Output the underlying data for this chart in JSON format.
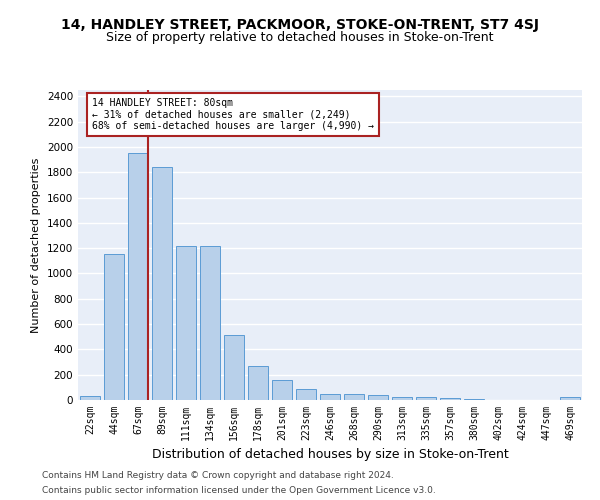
{
  "title": "14, HANDLEY STREET, PACKMOOR, STOKE-ON-TRENT, ST7 4SJ",
  "subtitle": "Size of property relative to detached houses in Stoke-on-Trent",
  "xlabel": "Distribution of detached houses by size in Stoke-on-Trent",
  "ylabel": "Number of detached properties",
  "categories": [
    "22sqm",
    "44sqm",
    "67sqm",
    "89sqm",
    "111sqm",
    "134sqm",
    "156sqm",
    "178sqm",
    "201sqm",
    "223sqm",
    "246sqm",
    "268sqm",
    "290sqm",
    "313sqm",
    "335sqm",
    "357sqm",
    "380sqm",
    "402sqm",
    "424sqm",
    "447sqm",
    "469sqm"
  ],
  "values": [
    30,
    1150,
    1950,
    1840,
    1220,
    1220,
    510,
    270,
    155,
    85,
    50,
    45,
    40,
    20,
    22,
    15,
    5,
    3,
    2,
    2,
    20
  ],
  "bar_color": "#b8d0ea",
  "bar_edge_color": "#5b9bd5",
  "vline_x_idx": 2,
  "marker_label": "14 HANDLEY STREET: 80sqm",
  "annotation_line1": "← 31% of detached houses are smaller (2,249)",
  "annotation_line2": "68% of semi-detached houses are larger (4,990) →",
  "vline_color": "#aa2222",
  "box_edge_color": "#aa2222",
  "background_color": "#e8eef8",
  "grid_color": "#ffffff",
  "footer1": "Contains HM Land Registry data © Crown copyright and database right 2024.",
  "footer2": "Contains public sector information licensed under the Open Government Licence v3.0.",
  "ylim": [
    0,
    2450
  ],
  "yticks": [
    0,
    200,
    400,
    600,
    800,
    1000,
    1200,
    1400,
    1600,
    1800,
    2000,
    2200,
    2400
  ],
  "title_fontsize": 10,
  "subtitle_fontsize": 9,
  "ylabel_fontsize": 8,
  "xlabel_fontsize": 9
}
